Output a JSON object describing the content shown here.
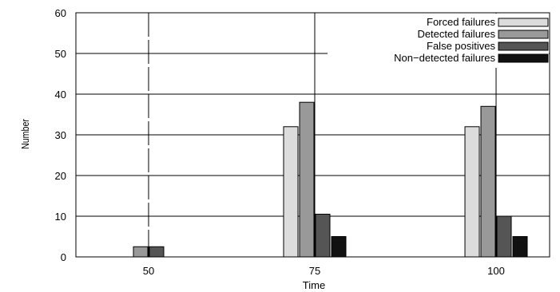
{
  "chart_data": {
    "type": "bar",
    "title": "",
    "xlabel": "Time",
    "ylabel": "Number",
    "categories": [
      "50",
      "75",
      "100"
    ],
    "ylim": [
      0,
      60
    ],
    "yticks": [
      0,
      10,
      20,
      30,
      40,
      50,
      60
    ],
    "grid": true,
    "legend_position": "top-right",
    "series": [
      {
        "name": "Forced failures",
        "values": [
          0,
          32,
          32
        ],
        "color": "#dcdcdc"
      },
      {
        "name": "Detected failures",
        "values": [
          2.5,
          38,
          37
        ],
        "color": "#999999"
      },
      {
        "name": "False positives",
        "values": [
          2.5,
          10.5,
          10
        ],
        "color": "#555555"
      },
      {
        "name": "Non−detected failures",
        "values": [
          0,
          5,
          5
        ],
        "color": "#111111"
      }
    ]
  }
}
